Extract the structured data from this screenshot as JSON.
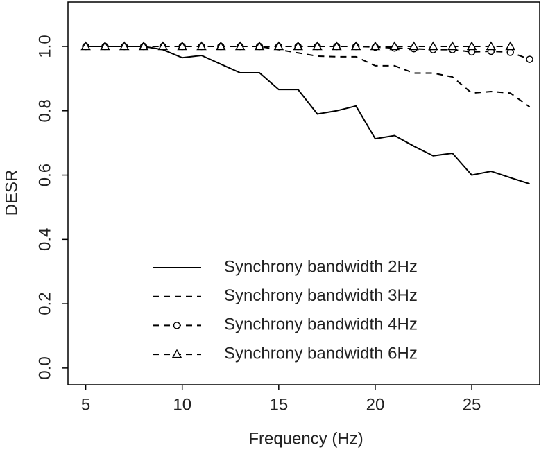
{
  "chart_data": {
    "type": "line",
    "x_label": "Frequency (Hz)",
    "y_label": "DESR",
    "x": [
      5,
      6,
      7,
      8,
      9,
      10,
      11,
      12,
      13,
      14,
      15,
      16,
      17,
      18,
      19,
      20,
      21,
      22,
      23,
      24,
      25,
      26,
      27,
      28
    ],
    "series": [
      {
        "name": "Synchrony bandwidth 2Hz",
        "color": "#000000",
        "line_style": "solid",
        "values": [
          1,
          1,
          1,
          1,
          0.99,
          0.965,
          0.972,
          0.945,
          0.918,
          0.918,
          0.866,
          0.866,
          0.79,
          0.8,
          0.815,
          0.713,
          0.723,
          0.69,
          0.66,
          0.668,
          0.6,
          0.612,
          0.592,
          0.573
        ]
      },
      {
        "name": "Synchrony bandwidth 3Hz",
        "color": "#000000",
        "line_style": "dashed",
        "values": [
          1,
          1,
          1,
          1,
          1,
          1,
          1,
          1,
          1,
          1,
          0.99,
          0.98,
          0.97,
          0.968,
          0.968,
          0.94,
          0.94,
          0.917,
          0.917,
          0.905,
          0.855,
          0.86,
          0.855,
          0.812
        ]
      },
      {
        "name": "Synchrony bandwidth 4Hz",
        "color": "#000000",
        "line_style": "dashed",
        "marker": "circle",
        "values": [
          1,
          1,
          1,
          1,
          1,
          1,
          1,
          1,
          1,
          1,
          1,
          1,
          1,
          1,
          1,
          0.998,
          0.995,
          0.993,
          0.99,
          0.99,
          0.983,
          0.985,
          0.982,
          0.96
        ]
      },
      {
        "name": "Synchrony bandwidth 6Hz",
        "color": "#000000",
        "line_style": "dashed",
        "marker": "triangle",
        "values": [
          1,
          1,
          1,
          1,
          1,
          1,
          1,
          1,
          1,
          1,
          1,
          1,
          1,
          1,
          1,
          1,
          1,
          1,
          1,
          1,
          1,
          1,
          1,
          null
        ]
      }
    ],
    "xlim": [
      4.08,
      28.52
    ],
    "xticks": [
      5,
      10,
      15,
      20,
      25
    ],
    "ylim": [
      -0.052,
      1.138
    ],
    "yticks": [
      {
        "value": 0,
        "label": "0.0"
      },
      0.2,
      0.4,
      0.6,
      0.8,
      {
        "value": 1,
        "label": "1.0"
      }
    ],
    "grid": false
  }
}
